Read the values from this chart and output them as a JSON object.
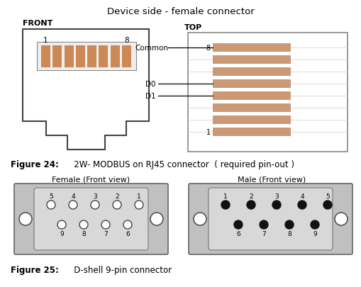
{
  "title": "Device side - female connector",
  "fig24_label": "Figure 24:",
  "fig24_rest": "       2W- MODBUS on RJ45 connector  ( required pin-out )",
  "fig25_label": "Figure 25:",
  "fig25_rest": "       D-shell 9-pin connector",
  "front_label": "FRONT",
  "top_label": "TOP",
  "common_label": "Common",
  "d0_label": "D0",
  "d1_label": "D1",
  "female_label": "Female (Front view)",
  "male_label": "Male (Front view)",
  "bg_color": "#ffffff",
  "rj45_pin_color": "#cc8855",
  "top_view_pin_color": "#cc9977",
  "connector_gray": "#c0c0c0",
  "connector_edge": "#555555",
  "inner_gray": "#d8d8d8"
}
